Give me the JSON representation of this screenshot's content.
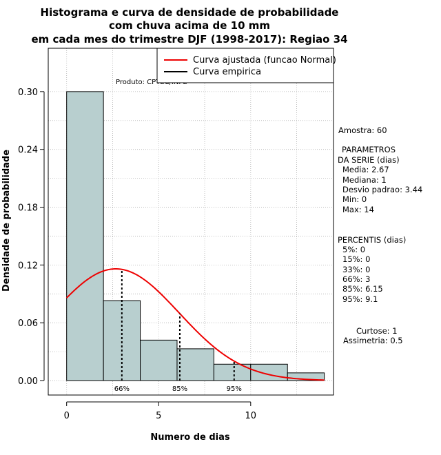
{
  "chart_data": {
    "type": "bar",
    "title_lines": [
      "Histograma e curva de densidade de probabilidade",
      "com chuva acima de 10 mm",
      "em cada mes do trimestre DJF (1998-2017): Regiao 34"
    ],
    "xlabel": "Numero de dias",
    "ylabel": "Densidade de probabilidade",
    "xlim": [
      -1,
      14.5
    ],
    "ylim": [
      -0.015,
      0.345
    ],
    "x_ticks": [
      0,
      5,
      10
    ],
    "x_tick_labels": [
      "0",
      "5",
      "10"
    ],
    "y_ticks": [
      0.0,
      0.06,
      0.12,
      0.18,
      0.24,
      0.3
    ],
    "y_tick_labels": [
      "0.00",
      "0.06",
      "0.12",
      "0.18",
      "0.24",
      "0.30"
    ],
    "bins": [
      {
        "start": 0,
        "end": 2,
        "density": 0.3
      },
      {
        "start": 2,
        "end": 4,
        "density": 0.083
      },
      {
        "start": 4,
        "end": 6,
        "density": 0.042
      },
      {
        "start": 6,
        "end": 8,
        "density": 0.033
      },
      {
        "start": 8,
        "end": 10,
        "density": 0.017
      },
      {
        "start": 10,
        "end": 12,
        "density": 0.017
      },
      {
        "start": 12,
        "end": 14,
        "density": 0.008
      }
    ],
    "normal_curve": {
      "mean": 2.67,
      "sd": 3.44,
      "x_range": [
        0,
        14
      ],
      "color": "#ee0000"
    },
    "percentile_markers": [
      {
        "x": 3,
        "label": "66%"
      },
      {
        "x": 6.15,
        "label": "85%"
      },
      {
        "x": 9.1,
        "label": "95%"
      }
    ],
    "bar_color": "#b8cfcf",
    "legend": {
      "position": "top-right",
      "entries": [
        {
          "label": "Curva ajustada (funcao Normal)",
          "color": "#ee0000"
        },
        {
          "label": "Curva empirica",
          "color": "#000000"
        }
      ]
    },
    "product_label": "Produto: CPTEC/INPE",
    "side_panel": {
      "amostra": "Amostra: 60",
      "param_title1": "PARAMETROS",
      "param_title2": "DA SERIE (dias)",
      "params": [
        "Media: 2.67",
        "Mediana: 1",
        "Desvio padrao: 3.44",
        "Min: 0",
        "Max: 14"
      ],
      "perc_title": "PERCENTIS (dias)",
      "percentis": [
        "5%: 0",
        "15%: 0",
        "33%: 0",
        "66%: 3",
        "85%: 6.15",
        "95%: 9.1"
      ],
      "curtose": "Curtose: 1",
      "assimetria": "Assimetria: 0.5"
    }
  }
}
